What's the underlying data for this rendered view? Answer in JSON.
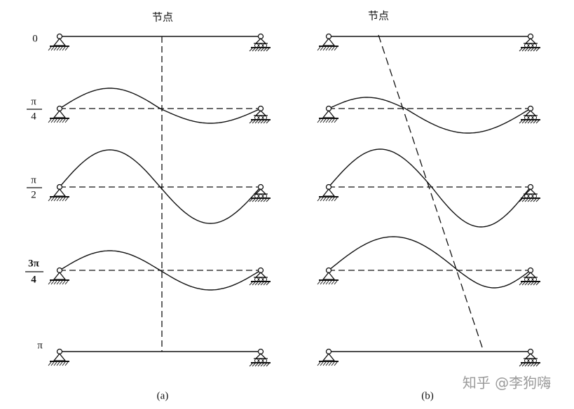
{
  "panel_a": {
    "title": "节点",
    "caption": "(a)"
  },
  "panel_b": {
    "title": "节点",
    "caption": "(b)"
  },
  "phase_labels": [
    {
      "text": "0"
    },
    {
      "numerator": "π",
      "denominator": "4"
    },
    {
      "numerator": "π",
      "denominator": "2"
    },
    {
      "numerator": "3π",
      "denominator": "4"
    },
    {
      "text": "π"
    }
  ],
  "watermark": "知乎 @李狗嗨"
}
